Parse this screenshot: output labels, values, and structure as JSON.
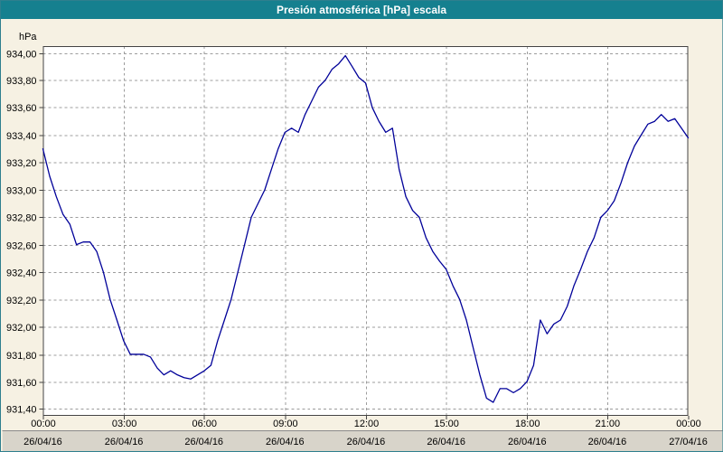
{
  "window": {
    "title": "Presión atmosférica [hPa] escala"
  },
  "colors": {
    "title_bar": "#15808F",
    "title_text": "#FFFFFF",
    "background": "#F6F1E3",
    "plot_background": "#FFFFFF",
    "grid": "#9C9C9C",
    "axis": "#444444",
    "line": "#000099",
    "bottom_bar": "#D8D4CA",
    "bottom_bar_border": "#8A8A8A",
    "text": "#000000"
  },
  "chart_data": {
    "type": "line",
    "title": "Presión atmosférica [hPa] escala",
    "ylabel": "hPa",
    "xlabel": "",
    "ylim": [
      931.35,
      934.05
    ],
    "xlim": [
      0,
      24
    ],
    "grid": true,
    "legend": false,
    "y_ticks": {
      "values": [
        934.0,
        933.8,
        933.6,
        933.4,
        933.2,
        933.0,
        932.8,
        932.6,
        932.4,
        932.2,
        932.0,
        931.8,
        931.6,
        931.4
      ],
      "labels": [
        "934,00",
        "933,80",
        "933,60",
        "933,40",
        "933,20",
        "933,00",
        "932,80",
        "932,60",
        "932,40",
        "932,20",
        "932,00",
        "931,80",
        "931,60",
        "931,40"
      ]
    },
    "x_ticks": [
      {
        "h": 0,
        "time": "00:00",
        "date": "26/04/16"
      },
      {
        "h": 3,
        "time": "03:00",
        "date": "26/04/16"
      },
      {
        "h": 6,
        "time": "06:00",
        "date": "26/04/16"
      },
      {
        "h": 9,
        "time": "09:00",
        "date": "26/04/16"
      },
      {
        "h": 12,
        "time": "12:00",
        "date": "26/04/16"
      },
      {
        "h": 15,
        "time": "15:00",
        "date": "26/04/16"
      },
      {
        "h": 18,
        "time": "18:00",
        "date": "26/04/16"
      },
      {
        "h": 21,
        "time": "21:00",
        "date": "26/04/16"
      },
      {
        "h": 24,
        "time": "00:00",
        "date": "27/04/16"
      }
    ],
    "series": [
      {
        "name": "Presión atmosférica",
        "color": "#000099",
        "x": [
          0,
          0.25,
          0.5,
          0.75,
          1,
          1.25,
          1.5,
          1.75,
          2,
          2.25,
          2.5,
          2.75,
          3,
          3.25,
          3.5,
          3.75,
          4,
          4.25,
          4.5,
          4.75,
          5,
          5.25,
          5.5,
          5.75,
          6,
          6.25,
          6.5,
          6.75,
          7,
          7.25,
          7.5,
          7.75,
          8,
          8.25,
          8.5,
          8.75,
          9,
          9.25,
          9.5,
          9.75,
          10,
          10.25,
          10.5,
          10.75,
          11,
          11.25,
          11.5,
          11.75,
          12,
          12.25,
          12.5,
          12.75,
          13,
          13.25,
          13.5,
          13.75,
          14,
          14.25,
          14.5,
          14.75,
          15,
          15.25,
          15.5,
          15.75,
          16,
          16.25,
          16.5,
          16.75,
          17,
          17.25,
          17.5,
          17.75,
          18,
          18.25,
          18.5,
          18.75,
          19,
          19.25,
          19.5,
          19.75,
          20,
          20.25,
          20.5,
          20.75,
          21,
          21.25,
          21.5,
          21.75,
          22,
          22.25,
          22.5,
          22.75,
          23,
          23.25,
          23.5,
          23.75,
          24
        ],
        "y": [
          933.3,
          933.1,
          932.95,
          932.82,
          932.75,
          932.6,
          932.62,
          932.62,
          932.55,
          932.4,
          932.2,
          932.05,
          931.9,
          931.8,
          931.8,
          931.8,
          931.78,
          931.7,
          931.65,
          931.68,
          931.65,
          931.63,
          931.62,
          931.65,
          931.68,
          931.72,
          931.9,
          932.05,
          932.2,
          932.4,
          932.6,
          932.8,
          932.9,
          933.0,
          933.15,
          933.3,
          933.42,
          933.45,
          933.42,
          933.55,
          933.65,
          933.75,
          933.8,
          933.88,
          933.92,
          933.98,
          933.9,
          933.82,
          933.78,
          933.6,
          933.5,
          933.42,
          933.45,
          933.15,
          932.95,
          932.85,
          932.8,
          932.65,
          932.55,
          932.48,
          932.42,
          932.3,
          932.2,
          932.05,
          931.85,
          931.65,
          931.48,
          931.45,
          931.55,
          931.55,
          931.52,
          931.55,
          931.6,
          931.72,
          932.05,
          931.95,
          932.02,
          932.05,
          932.15,
          932.3,
          932.42,
          932.55,
          932.65,
          932.8,
          932.85,
          932.92,
          933.05,
          933.2,
          933.32,
          933.4,
          933.48,
          933.5,
          933.55,
          933.5,
          933.52,
          933.45,
          933.38
        ]
      }
    ]
  }
}
